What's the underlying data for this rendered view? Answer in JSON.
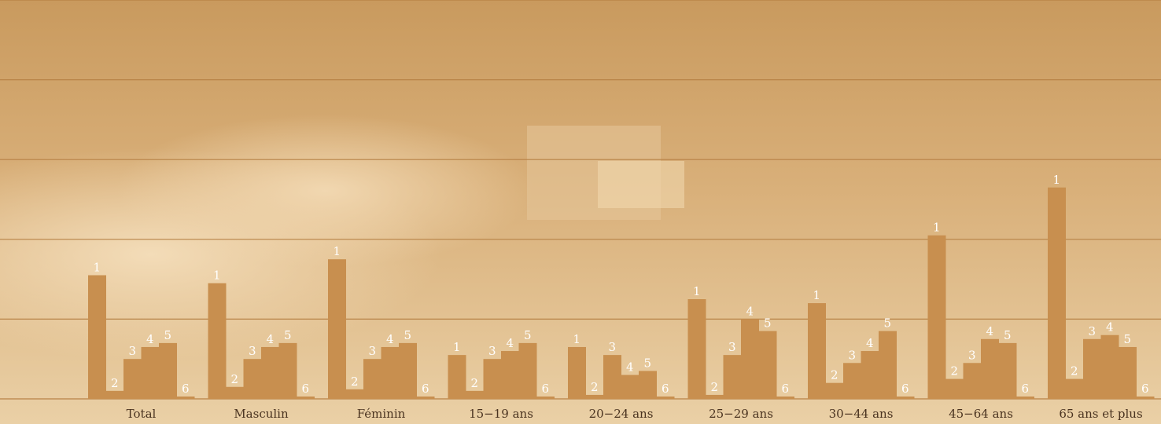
{
  "colors": {
    "background": "#e8c89a",
    "photo_dark": "#c99a5e",
    "bar": "#c88f4f",
    "gridline": "#b78246",
    "value_label": "#ffffff",
    "category_label": "#4a3320"
  },
  "chart_data": {
    "type": "bar",
    "title": "",
    "xlabel": "",
    "ylabel": "",
    "ylim": [
      0,
      5
    ],
    "grid": true,
    "legend": "none",
    "categories": [
      "Total",
      "Masculin",
      "Féminin",
      "15−19 ans",
      "20−24 ans",
      "25−29 ans",
      "30−44 ans",
      "45−64 ans",
      "65 ans et plus"
    ],
    "series": [
      {
        "label": "1",
        "values": [
          1.55,
          1.45,
          1.75,
          0.55,
          0.65,
          1.25,
          1.2,
          2.05,
          2.65
        ]
      },
      {
        "label": "2",
        "values": [
          0.1,
          0.15,
          0.12,
          0.1,
          0.05,
          0.05,
          0.2,
          0.25,
          0.25
        ]
      },
      {
        "label": "3",
        "values": [
          0.5,
          0.5,
          0.5,
          0.5,
          0.55,
          0.55,
          0.45,
          0.45,
          0.75
        ]
      },
      {
        "label": "4",
        "values": [
          0.65,
          0.65,
          0.65,
          0.6,
          0.3,
          1.0,
          0.6,
          0.75,
          0.8
        ]
      },
      {
        "label": "5",
        "values": [
          0.7,
          0.7,
          0.7,
          0.7,
          0.35,
          0.85,
          0.85,
          0.7,
          0.65
        ]
      },
      {
        "label": "6",
        "values": [
          0.02,
          0.02,
          0.02,
          0.02,
          0.02,
          0.02,
          0.02,
          0.02,
          0.02
        ]
      }
    ]
  }
}
